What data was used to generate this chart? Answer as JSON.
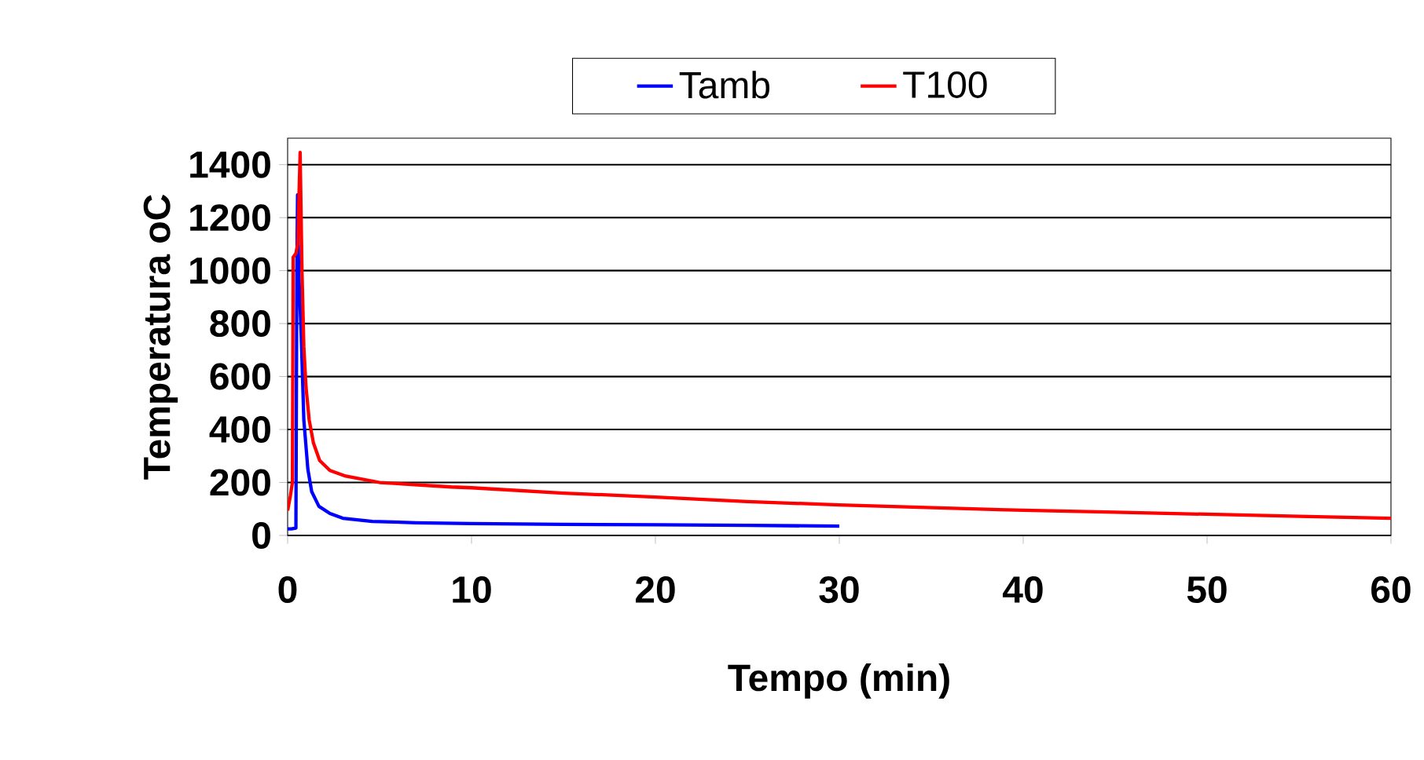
{
  "chart_data": {
    "type": "line",
    "xlabel": "Tempo (min)",
    "ylabel": "Temperatura oC",
    "xlim": [
      0,
      60
    ],
    "ylim": [
      0,
      1500
    ],
    "xticks": [
      0,
      10,
      20,
      30,
      40,
      50,
      60
    ],
    "yticks": [
      0,
      200,
      400,
      600,
      800,
      1000,
      1200,
      1400
    ],
    "grid": "y",
    "legend": "top",
    "line_style": "solid",
    "marker": "none",
    "series": [
      {
        "name": "Tamb",
        "color": "#0000ff",
        "x": [
          0,
          0.2,
          0.45,
          0.5,
          0.54,
          0.6,
          0.74,
          0.88,
          1.1,
          1.31,
          1.7,
          2.3,
          3,
          4.6,
          7,
          10,
          15,
          20,
          25,
          30
        ],
        "values": [
          25,
          25,
          28,
          1000,
          1286,
          1000,
          755,
          437,
          250,
          165,
          110,
          83,
          65,
          53,
          48,
          45,
          42,
          40,
          38,
          35
        ]
      },
      {
        "name": "T100",
        "color": "#ff0000",
        "x": [
          0,
          0.15,
          0.26,
          0.3,
          0.45,
          0.55,
          0.68,
          0.78,
          0.88,
          1.0,
          1.17,
          1.4,
          1.74,
          2.3,
          3.16,
          5,
          8.9,
          10,
          15,
          20,
          25,
          30,
          35,
          40,
          45,
          50,
          55,
          60
        ],
        "values": [
          94,
          150,
          200,
          1050,
          1065,
          1100,
          1446,
          1000,
          714,
          560,
          437,
          350,
          283,
          245,
          224,
          200,
          183,
          180,
          160,
          145,
          128,
          115,
          105,
          95,
          88,
          80,
          72,
          65
        ]
      }
    ]
  }
}
